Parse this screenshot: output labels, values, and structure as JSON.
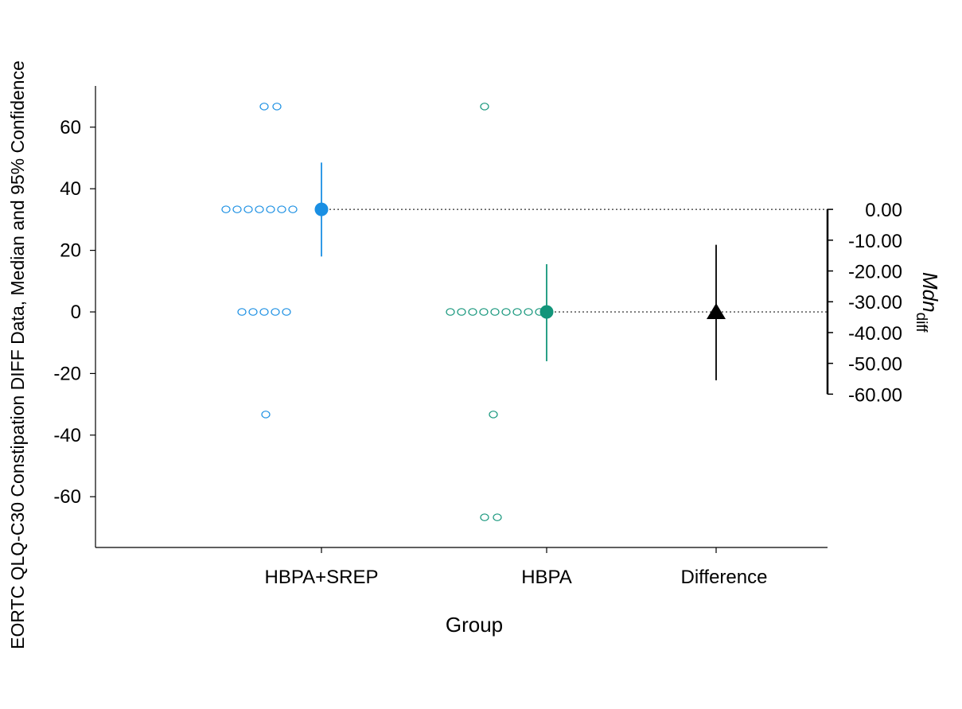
{
  "chart_data": {
    "type": "scatter",
    "xlabel": "Group",
    "ylabel": "EORTC QLQ-C30 Constipation DIFF Data, Median and 95% Confidence",
    "categories": [
      "HBPA+SREP",
      "HBPA",
      "Difference"
    ],
    "ylim": [
      -77,
      72
    ],
    "yticks": [
      60,
      40,
      20,
      0,
      -20,
      -40,
      -60
    ],
    "ytick_labels": [
      "60",
      "40",
      "20",
      "0",
      "-20",
      "-40",
      "-60"
    ],
    "series": [
      {
        "group": "HBPA+SREP",
        "color": "#1a8fe3",
        "points": [
          66.7,
          66.7,
          33.3,
          33.3,
          33.3,
          33.3,
          33.3,
          33.3,
          33.3,
          0,
          0,
          0,
          0,
          0,
          -33.3
        ],
        "median": 33.3,
        "ci": [
          18,
          48.5
        ]
      },
      {
        "group": "HBPA",
        "color": "#13957a",
        "points": [
          66.7,
          0,
          0,
          0,
          0,
          0,
          0,
          0,
          0,
          0,
          -33.3,
          -66.7,
          -66.7
        ],
        "median": 0,
        "ci": [
          -16,
          15.5
        ]
      }
    ],
    "difference": {
      "group": "Difference",
      "color": "#000000",
      "marker": "triangle",
      "value": -33.3,
      "ci": [
        -55.5,
        -11.5
      ]
    },
    "secondary_axis": {
      "label": "Mdn",
      "label_subscript": "diff",
      "ticks": [
        0,
        -10,
        -20,
        -30,
        -40,
        -50,
        -60
      ],
      "tick_labels": [
        "0.00",
        "-10.00",
        "-20.00",
        "-30.00",
        "-40.00",
        "-50.00",
        "-60.00"
      ]
    }
  }
}
